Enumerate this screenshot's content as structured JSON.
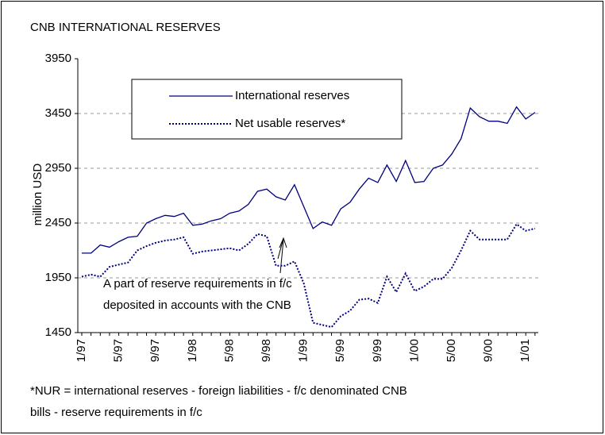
{
  "chart_data": {
    "type": "line",
    "title": "CNB INTERNATIONAL RESERVES",
    "y_label": "million USD",
    "categories": [
      "1/97",
      null,
      null,
      null,
      "5/97",
      null,
      null,
      null,
      "9/97",
      null,
      null,
      null,
      "1/98",
      null,
      null,
      null,
      "5/98",
      null,
      null,
      null,
      "9/98",
      null,
      null,
      null,
      "1/99",
      null,
      null,
      null,
      "5/99",
      null,
      null,
      null,
      "9/99",
      null,
      null,
      null,
      "1/00",
      null,
      null,
      null,
      "5/00",
      null,
      null,
      null,
      "9/00",
      null,
      null,
      null,
      "1/01",
      null
    ],
    "series": [
      {
        "name": "International reserves",
        "color": "#000080",
        "dash": false,
        "values": [
          2175,
          2175,
          2250,
          2230,
          2280,
          2320,
          2330,
          2450,
          2490,
          2520,
          2510,
          2540,
          2430,
          2440,
          2470,
          2490,
          2540,
          2560,
          2620,
          2740,
          2760,
          2690,
          2660,
          2800,
          2600,
          2400,
          2460,
          2430,
          2580,
          2640,
          2760,
          2860,
          2820,
          2980,
          2830,
          3020,
          2820,
          2830,
          2950,
          2980,
          3080,
          3220,
          3500,
          3420,
          3380,
          3380,
          3360,
          3510,
          3400,
          3460
        ]
      },
      {
        "name": "Net usable reserves*",
        "color": "#000080",
        "dash": true,
        "values": [
          1960,
          1980,
          1960,
          2050,
          2070,
          2090,
          2200,
          2240,
          2270,
          2290,
          2300,
          2320,
          2170,
          2190,
          2200,
          2210,
          2220,
          2200,
          2260,
          2350,
          2330,
          2060,
          2060,
          2100,
          1900,
          1540,
          1520,
          1500,
          1600,
          1650,
          1750,
          1760,
          1720,
          1960,
          1820,
          1990,
          1830,
          1870,
          1940,
          1940,
          2040,
          2200,
          2380,
          2300,
          2300,
          2300,
          2300,
          2440,
          2380,
          2400
        ]
      }
    ],
    "ylim": [
      1450,
      3950
    ],
    "yticks": [
      1450,
      1950,
      2450,
      2950,
      3450,
      3950
    ],
    "grid": true,
    "annotation": [
      "A part of reserve requirements in f/c",
      "deposited in accounts with the CNB"
    ],
    "footnote": [
      "*NUR = international reserves -  foreign liabilities - f/c denominated CNB",
      "bills - reserve requirements in f/c"
    ]
  }
}
